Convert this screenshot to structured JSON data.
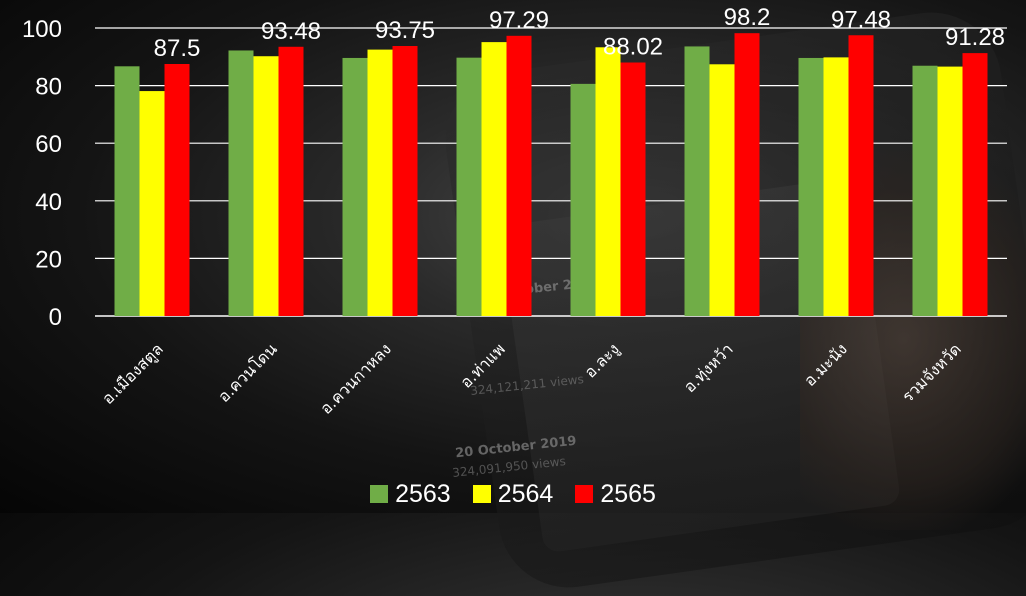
{
  "background_text": [
    "October 2019",
    "324,121,211 views",
    "20 October 2019",
    "324,091,950 views"
  ],
  "chart_data": {
    "type": "bar",
    "title": "",
    "xlabel": "",
    "ylabel": "",
    "categories": [
      "อ.เมืองสตูล",
      "อ.ควนโดน",
      "อ.ควนกาหลง",
      "อ.ท่าแพ",
      "อ.ละงู",
      "อ.ทุ่งหว้า",
      "อ.มะนัง",
      "รวมจังหวัด"
    ],
    "series": [
      {
        "name": "2563",
        "color": "#70ad47",
        "values": [
          86.7,
          92.2,
          89.6,
          89.7,
          80.6,
          93.6,
          89.6,
          86.9
        ]
      },
      {
        "name": "2564",
        "color": "#ffff00",
        "values": [
          78.1,
          90.2,
          92.5,
          95.1,
          93.3,
          87.4,
          89.8,
          86.6
        ]
      },
      {
        "name": "2565",
        "color": "#ff0000",
        "values": [
          87.5,
          93.48,
          93.75,
          97.29,
          88.02,
          98.2,
          97.48,
          91.28
        ],
        "data_labels": [
          "87.5",
          "93.48",
          "93.75",
          "97.29",
          "88.02",
          "98.2",
          "97.48",
          "91.28"
        ]
      }
    ],
    "ylim": [
      0,
      100
    ],
    "yticks": [
      0,
      20,
      40,
      60,
      80,
      100
    ],
    "grid": true,
    "legend_position": "bottom",
    "text_color": "#ffffff",
    "grid_color": "#ffffff"
  },
  "legend": [
    {
      "label": "2563",
      "color": "#70ad47"
    },
    {
      "label": "2564",
      "color": "#ffff00"
    },
    {
      "label": "2565",
      "color": "#ff0000"
    }
  ]
}
